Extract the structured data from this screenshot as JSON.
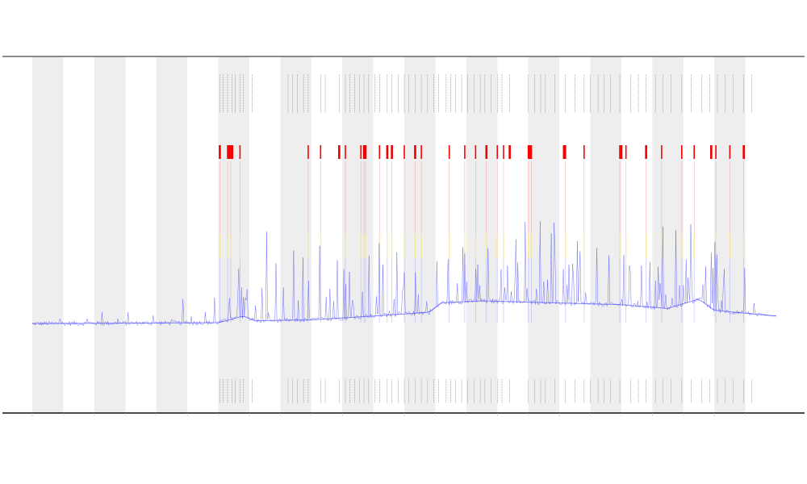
{
  "chart_data": {
    "type": "line",
    "title": "",
    "xlabel": "",
    "ylabel": "",
    "legend": {
      "placement": "bottom-left",
      "label": ""
    },
    "x_domain": [
      0,
      24
    ],
    "y_domain": [
      0,
      10
    ],
    "shaded_bands": [
      [
        0,
        1
      ],
      [
        2,
        3
      ],
      [
        4,
        5
      ],
      [
        6,
        7
      ],
      [
        8,
        9
      ],
      [
        10,
        11
      ],
      [
        12,
        13
      ],
      [
        14,
        15
      ],
      [
        16,
        17
      ],
      [
        18,
        19
      ],
      [
        20,
        21
      ],
      [
        22,
        23
      ]
    ],
    "x_ticks": [
      0,
      1,
      2,
      3,
      4,
      5,
      6,
      7,
      8,
      9,
      10,
      11,
      12,
      13,
      14,
      15,
      16,
      17,
      18,
      19,
      20,
      21,
      22,
      23
    ],
    "x_tick_labels": [
      "",
      "",
      "",
      "",
      "",
      "",
      "",
      "",
      "",
      "",
      "",
      "",
      "",
      "",
      "",
      "",
      "",
      "",
      "",
      "",
      "",
      "",
      "",
      ""
    ],
    "events": {
      "level_1": [
        6.05,
        6.15,
        6.3,
        6.45,
        6.55,
        6.7,
        6.8,
        7.1,
        8.25,
        8.4,
        8.55,
        8.75,
        8.9,
        9.3,
        9.45,
        9.9,
        10.1,
        10.25,
        10.4,
        10.55,
        10.7,
        10.85,
        11.05,
        11.2,
        11.45,
        11.6,
        11.8,
        12.0,
        12.15,
        12.35,
        12.55,
        12.75,
        12.95,
        13.1,
        13.35,
        13.5,
        13.65,
        13.85,
        14.05,
        14.25,
        14.45,
        14.6,
        14.8,
        15.0,
        15.15,
        15.4,
        16.0,
        16.2,
        16.4,
        16.55,
        16.85,
        17.2,
        17.5,
        17.8,
        18.0,
        18.25,
        18.45,
        18.65,
        18.95,
        19.3,
        19.55,
        19.8,
        20.1,
        20.35,
        20.6,
        20.95,
        21.25,
        21.6,
        21.85,
        22.1,
        22.35,
        22.6,
        22.95,
        23.2
      ],
      "level_2": [
        6.05,
        6.3,
        6.4,
        6.7,
        8.9,
        9.3,
        10.1,
        10.6,
        10.7,
        10.75,
        11.2,
        11.45,
        11.6,
        12.0,
        12.35,
        12.55,
        13.45,
        13.95,
        14.3,
        14.65,
        15.0,
        15.2,
        16.0,
        16.1,
        17.2,
        17.8,
        18.95,
        19.15,
        19.8,
        20.3,
        20.95,
        21.35,
        22.05,
        22.5,
        22.95
      ],
      "level_3": [
        6.05,
        6.35,
        6.45,
        9.9,
        10.7,
        10.75,
        11.45,
        11.6,
        12.35,
        14.65,
        15.4,
        16.05,
        17.15,
        19.0,
        19.8,
        21.9,
        22.95
      ]
    },
    "series": [
      {
        "type": "line",
        "color": "#3333ff",
        "samples": 800,
        "baseline": [
          [
            0,
            0.8
          ],
          [
            6,
            0.85
          ],
          [
            6.8,
            1.2
          ],
          [
            7.2,
            0.95
          ],
          [
            9,
            1.0
          ],
          [
            11,
            1.2
          ],
          [
            12.8,
            1.4
          ],
          [
            13.2,
            1.9
          ],
          [
            14.5,
            2.0
          ],
          [
            19,
            1.8
          ],
          [
            20.5,
            1.6
          ],
          [
            21.5,
            2.1
          ],
          [
            22,
            1.5
          ],
          [
            24,
            1.2
          ]
        ],
        "spike_density": [
          [
            0,
            0.3
          ],
          [
            6,
            0.5
          ],
          [
            7,
            1.0
          ],
          [
            9,
            1.0
          ],
          [
            12,
            1.0
          ],
          [
            24,
            1.0
          ]
        ],
        "spike_max": 4.0
      }
    ]
  }
}
